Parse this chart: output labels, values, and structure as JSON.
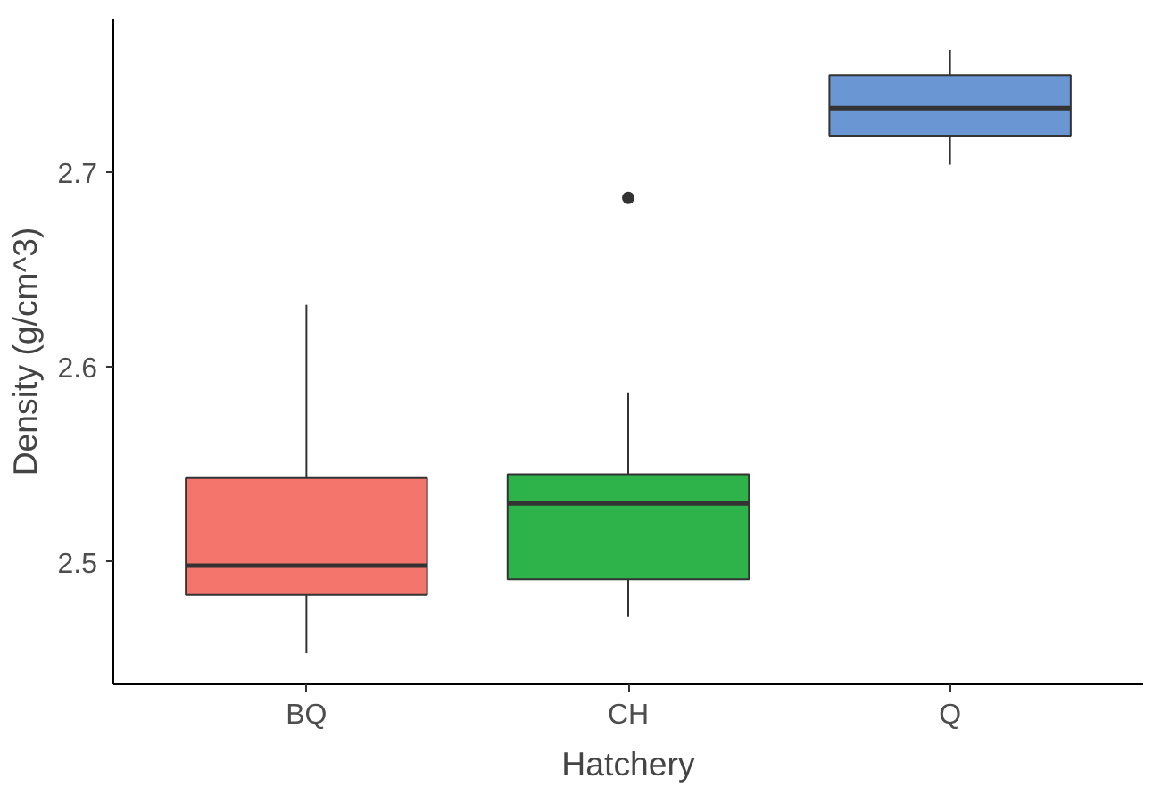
{
  "chart_data": {
    "type": "box",
    "xlabel": "Hatchery",
    "ylabel": "Density (g/cm^3)",
    "categories": [
      "BQ",
      "CH",
      "Q"
    ],
    "colors": [
      "#f4756b",
      "#2db34a",
      "#6a96d4"
    ],
    "boxes": [
      {
        "low": 2.453,
        "q1": 2.483,
        "median": 2.498,
        "q3": 2.543,
        "high": 2.632
      },
      {
        "low": 2.472,
        "q1": 2.491,
        "median": 2.53,
        "q3": 2.545,
        "high": 2.587,
        "outliers": [
          2.687
        ]
      },
      {
        "low": 2.704,
        "q1": 2.719,
        "median": 2.733,
        "q3": 2.75,
        "high": 2.763
      }
    ],
    "ylim": [
      2.437,
      2.779
    ],
    "yticks": [
      2.5,
      2.6,
      2.7
    ],
    "grid": false
  }
}
